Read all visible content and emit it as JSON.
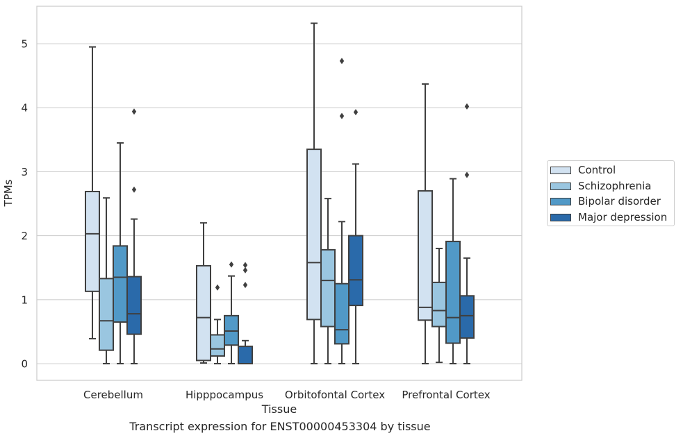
{
  "caption": "Transcript expression for ENST00000453304 by tissue",
  "chart_data": {
    "type": "box",
    "xlabel": "Tissue",
    "ylabel": "TPMs",
    "ylim": [
      -0.25,
      5.6
    ],
    "yticks": [
      0,
      1,
      2,
      3,
      4,
      5
    ],
    "grid": "horizontal",
    "legend_placement": "right-outside",
    "categories": [
      "Cerebellum",
      "Hipppocampus",
      "Orbitofontal Cortex",
      "Prefrontal Cortex"
    ],
    "series": [
      {
        "name": "Control",
        "color": "#d2e2f1",
        "boxes": [
          {
            "whislo": 0.39,
            "q1": 1.13,
            "med": 2.03,
            "q3": 2.69,
            "whishi": 4.95,
            "fliers": []
          },
          {
            "whislo": 0.01,
            "q1": 0.05,
            "med": 0.72,
            "q3": 1.53,
            "whishi": 2.2,
            "fliers": []
          },
          {
            "whislo": 0.0,
            "q1": 0.69,
            "med": 1.58,
            "q3": 3.35,
            "whishi": 5.32,
            "fliers": []
          },
          {
            "whislo": 0.0,
            "q1": 0.68,
            "med": 0.88,
            "q3": 2.7,
            "whishi": 4.37,
            "fliers": []
          }
        ]
      },
      {
        "name": "Schizophrenia",
        "color": "#9ac6e0",
        "boxes": [
          {
            "whislo": 0.0,
            "q1": 0.21,
            "med": 0.67,
            "q3": 1.33,
            "whishi": 2.59,
            "fliers": []
          },
          {
            "whislo": 0.0,
            "q1": 0.12,
            "med": 0.23,
            "q3": 0.45,
            "whishi": 0.69,
            "fliers": [
              1.19
            ]
          },
          {
            "whislo": 0.0,
            "q1": 0.58,
            "med": 1.3,
            "q3": 1.78,
            "whishi": 2.58,
            "fliers": []
          },
          {
            "whislo": 0.02,
            "q1": 0.58,
            "med": 0.83,
            "q3": 1.27,
            "whishi": 1.8,
            "fliers": []
          }
        ]
      },
      {
        "name": "Bipolar disorder",
        "color": "#5199c7",
        "boxes": [
          {
            "whislo": 0.0,
            "q1": 0.65,
            "med": 1.35,
            "q3": 1.84,
            "whishi": 3.45,
            "fliers": []
          },
          {
            "whislo": 0.0,
            "q1": 0.29,
            "med": 0.51,
            "q3": 0.75,
            "whishi": 1.37,
            "fliers": [
              1.55
            ]
          },
          {
            "whislo": 0.0,
            "q1": 0.31,
            "med": 0.53,
            "q3": 1.25,
            "whishi": 2.22,
            "fliers": [
              3.87,
              4.73
            ]
          },
          {
            "whislo": 0.0,
            "q1": 0.32,
            "med": 0.72,
            "q3": 1.91,
            "whishi": 2.89,
            "fliers": []
          }
        ]
      },
      {
        "name": "Major depression",
        "color": "#2a6aaa",
        "boxes": [
          {
            "whislo": 0.0,
            "q1": 0.46,
            "med": 0.78,
            "q3": 1.36,
            "whishi": 2.26,
            "fliers": [
              2.72,
              3.94
            ]
          },
          {
            "whislo": 0.0,
            "q1": 0.0,
            "med": 0.0,
            "q3": 0.27,
            "whishi": 0.36,
            "fliers": [
              1.23,
              1.46,
              1.54
            ]
          },
          {
            "whislo": 0.0,
            "q1": 0.91,
            "med": 1.31,
            "q3": 2.0,
            "whishi": 3.12,
            "fliers": [
              3.93
            ]
          },
          {
            "whislo": 0.0,
            "q1": 0.4,
            "med": 0.75,
            "q3": 1.06,
            "whishi": 1.65,
            "fliers": [
              2.95,
              4.02
            ]
          }
        ]
      }
    ]
  }
}
